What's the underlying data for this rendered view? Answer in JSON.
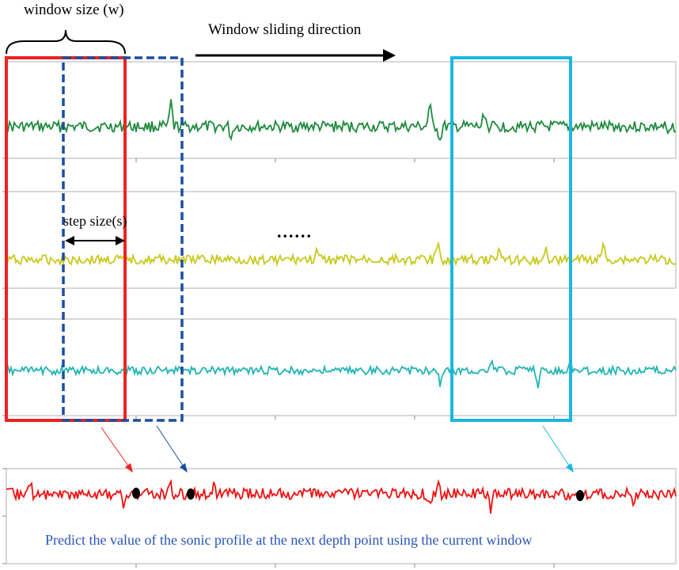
{
  "labels": {
    "window_size": "window size (w)",
    "sliding_direction": "Window sliding direction",
    "step_size": "step size(s)",
    "ellipsis": "......",
    "caption": "Predict the value of the sonic profile at the next depth point using the current window"
  },
  "colors": {
    "panel_border": "#b0b0b0",
    "track_1": "#1e8a3c",
    "track_2": "#c8c81e",
    "track_3": "#22b4b4",
    "target_track": "#ee1111",
    "window_current": "#ee2222",
    "window_next": "#1a4fa0",
    "window_later": "#1ab8e0",
    "caption": "#2a55b5",
    "marker": "#000000"
  },
  "tracks": [
    {
      "name": "track-1",
      "color_key": "track_1"
    },
    {
      "name": "track-2",
      "color_key": "track_2"
    },
    {
      "name": "track-3",
      "color_key": "track_3"
    }
  ],
  "windows": [
    {
      "name": "current-window",
      "color_key": "window_current",
      "style": "solid"
    },
    {
      "name": "next-window",
      "color_key": "window_next",
      "style": "dashed"
    },
    {
      "name": "later-window",
      "color_key": "window_later",
      "style": "solid"
    }
  ]
}
